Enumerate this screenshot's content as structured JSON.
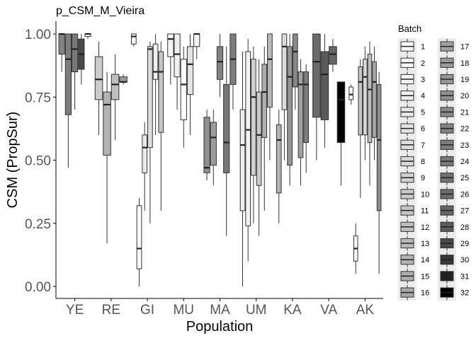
{
  "chart_data": {
    "type": "boxplot",
    "title": "p_CSM_M_Vieira",
    "xlabel": "Population",
    "ylabel": "CSM (PropSur)",
    "ylim": [
      0,
      1
    ],
    "yticks": [
      "0.00",
      "0.25",
      "0.50",
      "0.75",
      "1.00"
    ],
    "categories": [
      "YE",
      "RE",
      "GI",
      "MU",
      "MA",
      "UM",
      "KA",
      "VA",
      "AK"
    ],
    "legend": {
      "title": "Batch",
      "position": "right",
      "items": [
        "1",
        "2",
        "3",
        "4",
        "5",
        "6",
        "7",
        "8",
        "9",
        "10",
        "11",
        "12",
        "13",
        "14",
        "15",
        "16",
        "17",
        "18",
        "19",
        "20",
        "21",
        "22",
        "23",
        "24",
        "25",
        "26",
        "27",
        "28",
        "29",
        "30",
        "31",
        "32"
      ],
      "colors": [
        "#ffffff",
        "#fafafa",
        "#f4f4f4",
        "#efefef",
        "#e9e9e9",
        "#e3e3e3",
        "#dddddd",
        "#d7d7d7",
        "#d1d1d1",
        "#cbcbcb",
        "#c5c5c5",
        "#bfbfbf",
        "#b9b9b9",
        "#b3b3b3",
        "#adadad",
        "#a7a7a7",
        "#a1a1a1",
        "#9b9b9b",
        "#959595",
        "#8f8f8f",
        "#898989",
        "#838383",
        "#7d7d7d",
        "#777777",
        "#717171",
        "#6b6b6b",
        "#656565",
        "#5b5b5b",
        "#4a4a4a",
        "#373737",
        "#222222",
        "#000000"
      ]
    },
    "groups": [
      {
        "category": "YE",
        "boxes": [
          {
            "batch": 22,
            "q1": 0.92,
            "median": 1.0,
            "q3": 1.0,
            "min": 0.85,
            "max": 1.0
          },
          {
            "batch": 23,
            "q1": 0.68,
            "median": 0.9,
            "q3": 1.0,
            "min": 0.47,
            "max": 1.0
          },
          {
            "batch": 24,
            "q1": 0.85,
            "median": 0.94,
            "q3": 1.0,
            "min": 0.7,
            "max": 1.0
          },
          {
            "batch": 29,
            "q1": 0.86,
            "median": 0.92,
            "q3": 0.98,
            "min": 0.8,
            "max": 1.0
          },
          {
            "batch": 2,
            "q1": 0.99,
            "median": 1.0,
            "q3": 1.0,
            "min": 0.98,
            "max": 1.0
          }
        ]
      },
      {
        "category": "RE",
        "boxes": [
          {
            "batch": 10,
            "q1": 0.74,
            "median": 0.82,
            "q3": 0.91,
            "min": 0.6,
            "max": 0.97
          },
          {
            "batch": 14,
            "q1": 0.52,
            "median": 0.72,
            "q3": 0.77,
            "min": 0.17,
            "max": 0.85
          },
          {
            "batch": 12,
            "q1": 0.74,
            "median": 0.8,
            "q3": 0.84,
            "min": 0.58,
            "max": 0.92
          },
          {
            "batch": 18,
            "q1": 0.81,
            "median": 0.81,
            "q3": 0.83,
            "min": 0.8,
            "max": 0.84
          }
        ]
      },
      {
        "category": "GI",
        "boxes": [
          {
            "batch": 2,
            "q1": 0.96,
            "median": 0.99,
            "q3": 1.0,
            "min": 0.95,
            "max": 1.0
          },
          {
            "batch": 1,
            "q1": 0.07,
            "median": 0.15,
            "q3": 0.32,
            "min": 0.0,
            "max": 0.35
          },
          {
            "batch": 5,
            "q1": 0.45,
            "median": 0.55,
            "q3": 0.6,
            "min": 0.3,
            "max": 0.65
          },
          {
            "batch": 7,
            "q1": 0.55,
            "median": 0.94,
            "q3": 0.95,
            "min": 0.25,
            "max": 0.97
          },
          {
            "batch": 4,
            "q1": 0.82,
            "median": 0.85,
            "q3": 0.96,
            "min": 0.6,
            "max": 1.0
          },
          {
            "batch": 11,
            "q1": 0.61,
            "median": 0.85,
            "q3": 0.93,
            "min": 0.3,
            "max": 0.97
          }
        ]
      },
      {
        "category": "MU",
        "boxes": [
          {
            "batch": 3,
            "q1": 0.91,
            "median": 0.98,
            "q3": 1.0,
            "min": 0.8,
            "max": 1.0
          },
          {
            "batch": 4,
            "q1": 0.83,
            "median": 0.92,
            "q3": 1.0,
            "min": 0.7,
            "max": 1.0
          },
          {
            "batch": 1,
            "q1": 0.66,
            "median": 0.8,
            "q3": 0.9,
            "min": 0.55,
            "max": 0.95
          },
          {
            "batch": 6,
            "q1": 0.76,
            "median": 0.88,
            "q3": 0.95,
            "min": 0.6,
            "max": 1.0
          },
          {
            "batch": 3,
            "q1": 0.95,
            "median": 1.0,
            "q3": 1.0,
            "min": 0.9,
            "max": 1.0
          }
        ]
      },
      {
        "category": "MA",
        "boxes": [
          {
            "batch": 20,
            "q1": 0.45,
            "median": 0.47,
            "q3": 0.67,
            "min": 0.42,
            "max": 0.7
          },
          {
            "batch": 18,
            "q1": 0.48,
            "median": 0.59,
            "q3": 0.65,
            "min": 0.4,
            "max": 0.7
          },
          {
            "batch": 22,
            "q1": 0.82,
            "median": 0.89,
            "q3": 0.95,
            "min": 0.75,
            "max": 1.0
          },
          {
            "batch": 24,
            "q1": 0.45,
            "median": 0.57,
            "q3": 0.8,
            "min": 0.2,
            "max": 0.95
          },
          {
            "batch": 23,
            "q1": 0.8,
            "median": 0.9,
            "q3": 1.0,
            "min": 0.7,
            "max": 1.0
          }
        ]
      },
      {
        "category": "UM",
        "boxes": [
          {
            "batch": 4,
            "q1": 0.3,
            "median": 0.56,
            "q3": 0.7,
            "min": 0.0,
            "max": 0.93
          },
          {
            "batch": 3,
            "q1": 0.24,
            "median": 0.62,
            "q3": 0.93,
            "min": 0.1,
            "max": 0.98
          },
          {
            "batch": 9,
            "q1": 0.44,
            "median": 0.75,
            "q3": 0.9,
            "min": 0.25,
            "max": 0.95
          },
          {
            "batch": 10,
            "q1": 0.4,
            "median": 0.6,
            "q3": 0.77,
            "min": 0.2,
            "max": 0.9
          },
          {
            "batch": 15,
            "q1": 0.59,
            "median": 0.77,
            "q3": 0.88,
            "min": 0.3,
            "max": 0.95
          },
          {
            "batch": 13,
            "q1": 0.71,
            "median": 0.9,
            "q3": 1.0,
            "min": 0.5,
            "max": 1.0
          }
        ]
      },
      {
        "category": "KA",
        "boxes": [
          {
            "batch": 14,
            "q1": 0.37,
            "median": 0.58,
            "q3": 0.64,
            "min": 0.25,
            "max": 0.7
          },
          {
            "batch": 7,
            "q1": 0.7,
            "median": 0.95,
            "q3": 1.0,
            "min": 0.5,
            "max": 1.0
          },
          {
            "batch": 19,
            "q1": 0.48,
            "median": 0.83,
            "q3": 0.95,
            "min": 0.4,
            "max": 1.0
          },
          {
            "batch": 21,
            "q1": 0.79,
            "median": 0.93,
            "q3": 1.0,
            "min": 0.7,
            "max": 1.0
          },
          {
            "batch": 17,
            "q1": 0.51,
            "median": 0.8,
            "q3": 0.85,
            "min": 0.4,
            "max": 0.9
          },
          {
            "batch": 23,
            "q1": 0.57,
            "median": 0.8,
            "q3": 0.85,
            "min": 0.45,
            "max": 0.88
          }
        ]
      },
      {
        "category": "VA",
        "boxes": [
          {
            "batch": 26,
            "q1": 0.67,
            "median": 0.89,
            "q3": 1.0,
            "min": 0.5,
            "max": 1.0
          },
          {
            "batch": 28,
            "q1": 0.66,
            "median": 0.84,
            "q3": 0.93,
            "min": 0.55,
            "max": 1.0
          },
          {
            "batch": 27,
            "q1": 0.88,
            "median": 0.92,
            "q3": 0.95,
            "min": 0.85,
            "max": 0.98
          },
          {
            "batch": 32,
            "q1": 0.57,
            "median": 0.74,
            "q3": 0.81,
            "min": 0.4,
            "max": 0.81
          }
        ]
      },
      {
        "category": "AK",
        "boxes": [
          {
            "batch": 1,
            "q1": 0.74,
            "median": 0.76,
            "q3": 0.79,
            "min": 0.72,
            "max": 0.8
          },
          {
            "batch": 2,
            "q1": 0.1,
            "median": 0.15,
            "q3": 0.2,
            "min": 0.05,
            "max": 0.25
          },
          {
            "batch": 11,
            "q1": 0.6,
            "median": 0.81,
            "q3": 0.87,
            "min": 0.35,
            "max": 0.9
          },
          {
            "batch": 8,
            "q1": 0.6,
            "median": 0.83,
            "q3": 0.9,
            "min": 0.5,
            "max": 0.95
          },
          {
            "batch": 12,
            "q1": 0.57,
            "median": 0.78,
            "q3": 0.92,
            "min": 0.4,
            "max": 0.97
          },
          {
            "batch": 16,
            "q1": 0.59,
            "median": 0.81,
            "q3": 0.89,
            "min": 0.5,
            "max": 0.95
          },
          {
            "batch": 20,
            "q1": 0.3,
            "median": 0.58,
            "q3": 0.8,
            "min": 0.05,
            "max": 0.85
          }
        ]
      }
    ]
  }
}
